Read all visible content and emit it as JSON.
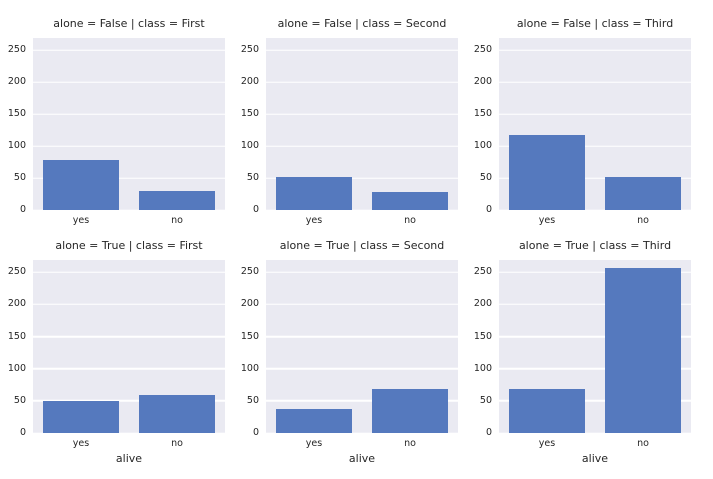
{
  "chart_data": {
    "type": "bar",
    "facet_grid": true,
    "categories": [
      "yes",
      "no"
    ],
    "xlabel": "alive",
    "ylabel": "",
    "yticks": [
      "0",
      "50",
      "100",
      "150",
      "200",
      "250"
    ],
    "ytick_values": [
      0,
      50,
      100,
      150,
      200,
      250
    ],
    "ylim": [
      0,
      269
    ],
    "grid": true,
    "legend": false,
    "facets": [
      {
        "title": "alone = False | class = First",
        "values": [
          78,
          29
        ],
        "row": 0,
        "col": 0
      },
      {
        "title": "alone = False | class = Second",
        "values": [
          51,
          28
        ],
        "row": 0,
        "col": 1
      },
      {
        "title": "alone = False | class = Third",
        "values": [
          117,
          51
        ],
        "row": 0,
        "col": 2
      },
      {
        "title": "alone = True | class = First",
        "values": [
          50,
          59
        ],
        "row": 1,
        "col": 0
      },
      {
        "title": "alone = True | class = Second",
        "values": [
          37,
          69
        ],
        "row": 1,
        "col": 1
      },
      {
        "title": "alone = True | class = Third",
        "values": [
          69,
          256
        ],
        "row": 1,
        "col": 2
      }
    ],
    "colors": {
      "bar": "#5579be",
      "axes_background": "#eaeaf2",
      "gridline": "#ffffff",
      "text": "#262626",
      "figure_background": "#ffffff"
    }
  }
}
